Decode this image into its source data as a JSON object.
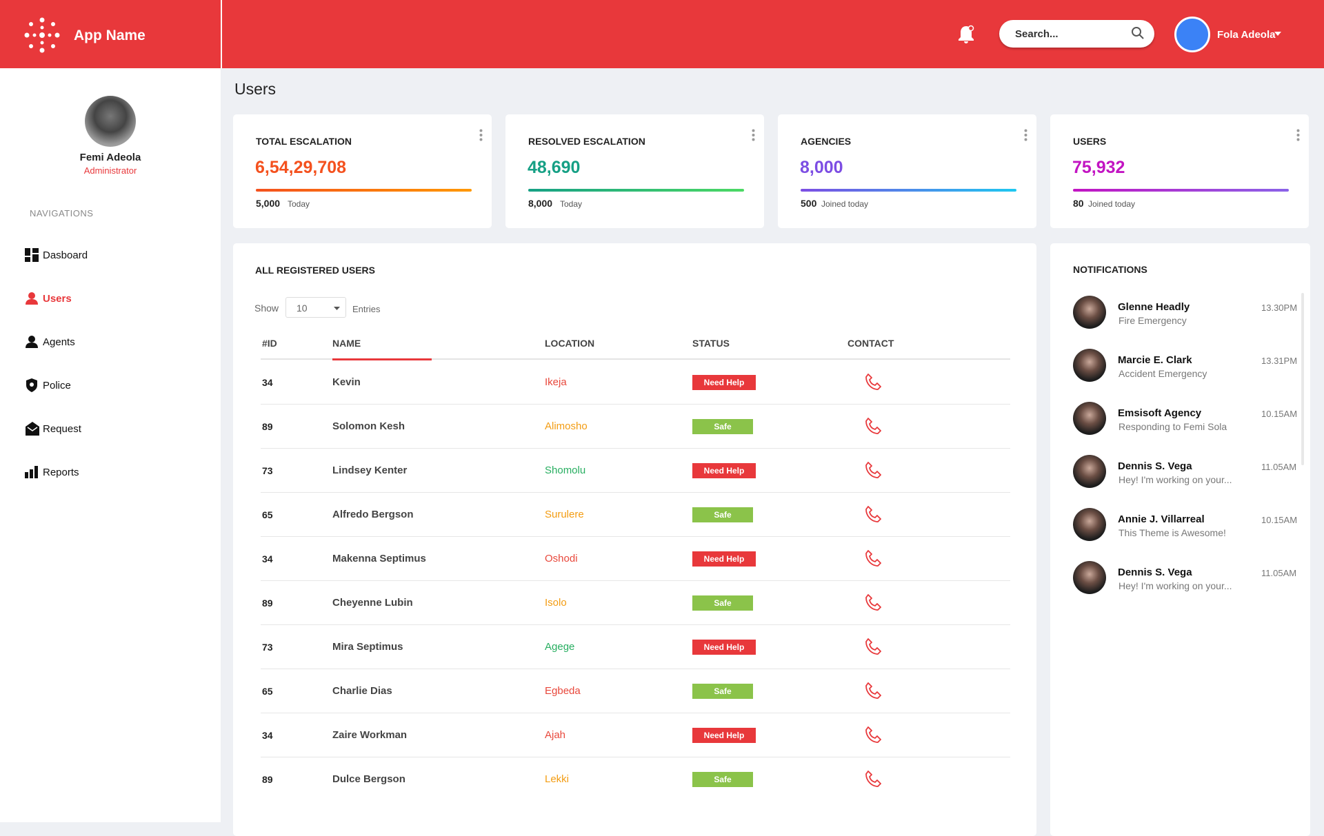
{
  "header": {
    "app_name": "App Name",
    "search_placeholder": "Search...",
    "user_name": "Fola Adeola"
  },
  "sidebar": {
    "profile_name": "Femi Adeola",
    "profile_role": "Administrator",
    "section_title": "NAVIGATIONS",
    "nav": [
      "Dasboard",
      "Users",
      "Agents",
      "Police",
      "Request",
      "Reports"
    ],
    "active_nav": 1
  },
  "page_title": "Users",
  "stats": [
    {
      "title": "TOTAL ESCALATION",
      "value": "6,54,29,708",
      "footer_value": "5,000",
      "footer_text": "Today",
      "color": "#f4511e",
      "bar_colors": [
        "#f4511e",
        "#ff9800"
      ]
    },
    {
      "title": "RESOLVED ESCALATION",
      "value": "48,690",
      "footer_value": "8,000",
      "footer_text": "Today",
      "color": "#16a085",
      "bar_colors": [
        "#16a085",
        "#4cd964"
      ]
    },
    {
      "title": "AGENCIES",
      "value": "8,000",
      "footer_value": "500",
      "footer_text": "Joined today",
      "color": "#7c4de3",
      "bar_colors": [
        "#7c4de3",
        "#1ec8f0"
      ]
    },
    {
      "title": "USERS",
      "value": "75,932",
      "footer_value": "80",
      "footer_text": "Joined today",
      "color": "#c214c2",
      "bar_colors": [
        "#c214c2",
        "#8a63e8"
      ]
    }
  ],
  "table": {
    "title": "ALL REGISTERED USERS",
    "show_label": "Show",
    "page_size": "10",
    "entries_label": "Entries",
    "columns": [
      "#ID",
      "NAME",
      "LOCATION",
      "STATUS",
      "CONTACT"
    ],
    "rows": [
      {
        "id": "34",
        "name": "Kevin",
        "location": "Ikeja",
        "location_color": "#e8473b",
        "status": "Need Help",
        "status_color": "#e8383b"
      },
      {
        "id": "89",
        "name": "Solomon Kesh",
        "location": "Alimosho",
        "location_color": "#f39c12",
        "status": "Safe",
        "status_color": "#8bc34a"
      },
      {
        "id": "73",
        "name": "Lindsey Kenter",
        "location": "Shomolu",
        "location_color": "#27ae60",
        "status": "Need Help",
        "status_color": "#e8383b"
      },
      {
        "id": "65",
        "name": "Alfredo Bergson",
        "location": "Surulere",
        "location_color": "#f39c12",
        "status": "Safe",
        "status_color": "#8bc34a"
      },
      {
        "id": "34",
        "name": "Makenna Septimus",
        "location": "Oshodi",
        "location_color": "#e8473b",
        "status": "Need Help",
        "status_color": "#e8383b"
      },
      {
        "id": "89",
        "name": "Cheyenne Lubin",
        "location": "Isolo",
        "location_color": "#f39c12",
        "status": "Safe",
        "status_color": "#8bc34a"
      },
      {
        "id": "73",
        "name": "Mira Septimus",
        "location": "Agege",
        "location_color": "#27ae60",
        "status": "Need Help",
        "status_color": "#e8383b"
      },
      {
        "id": "65",
        "name": "Charlie Dias",
        "location": "Egbeda",
        "location_color": "#e8473b",
        "status": "Safe",
        "status_color": "#8bc34a"
      },
      {
        "id": "34",
        "name": "Zaire Workman",
        "location": "Ajah",
        "location_color": "#e8473b",
        "status": "Need Help",
        "status_color": "#e8383b"
      },
      {
        "id": "89",
        "name": "Dulce Bergson",
        "location": "Lekki",
        "location_color": "#f39c12",
        "status": "Safe",
        "status_color": "#8bc34a"
      }
    ]
  },
  "notifications": {
    "title": "NOTIFICATIONS",
    "items": [
      {
        "name": "Glenne Headly",
        "message": "Fire Emergency",
        "time": "13.30PM"
      },
      {
        "name": "Marcie E. Clark",
        "message": "Accident Emergency",
        "time": "13.31PM"
      },
      {
        "name": "Emsisoft Agency",
        "message": "Responding to Femi Sola",
        "time": "10.15AM"
      },
      {
        "name": "Dennis S. Vega",
        "message": "Hey! I'm working on your...",
        "time": "11.05AM"
      },
      {
        "name": "Annie J. Villarreal",
        "message": "This Theme is Awesome!",
        "time": "10.15AM"
      },
      {
        "name": "Dennis S. Vega",
        "message": "Hey! I'm working on your...",
        "time": "11.05AM"
      }
    ]
  }
}
